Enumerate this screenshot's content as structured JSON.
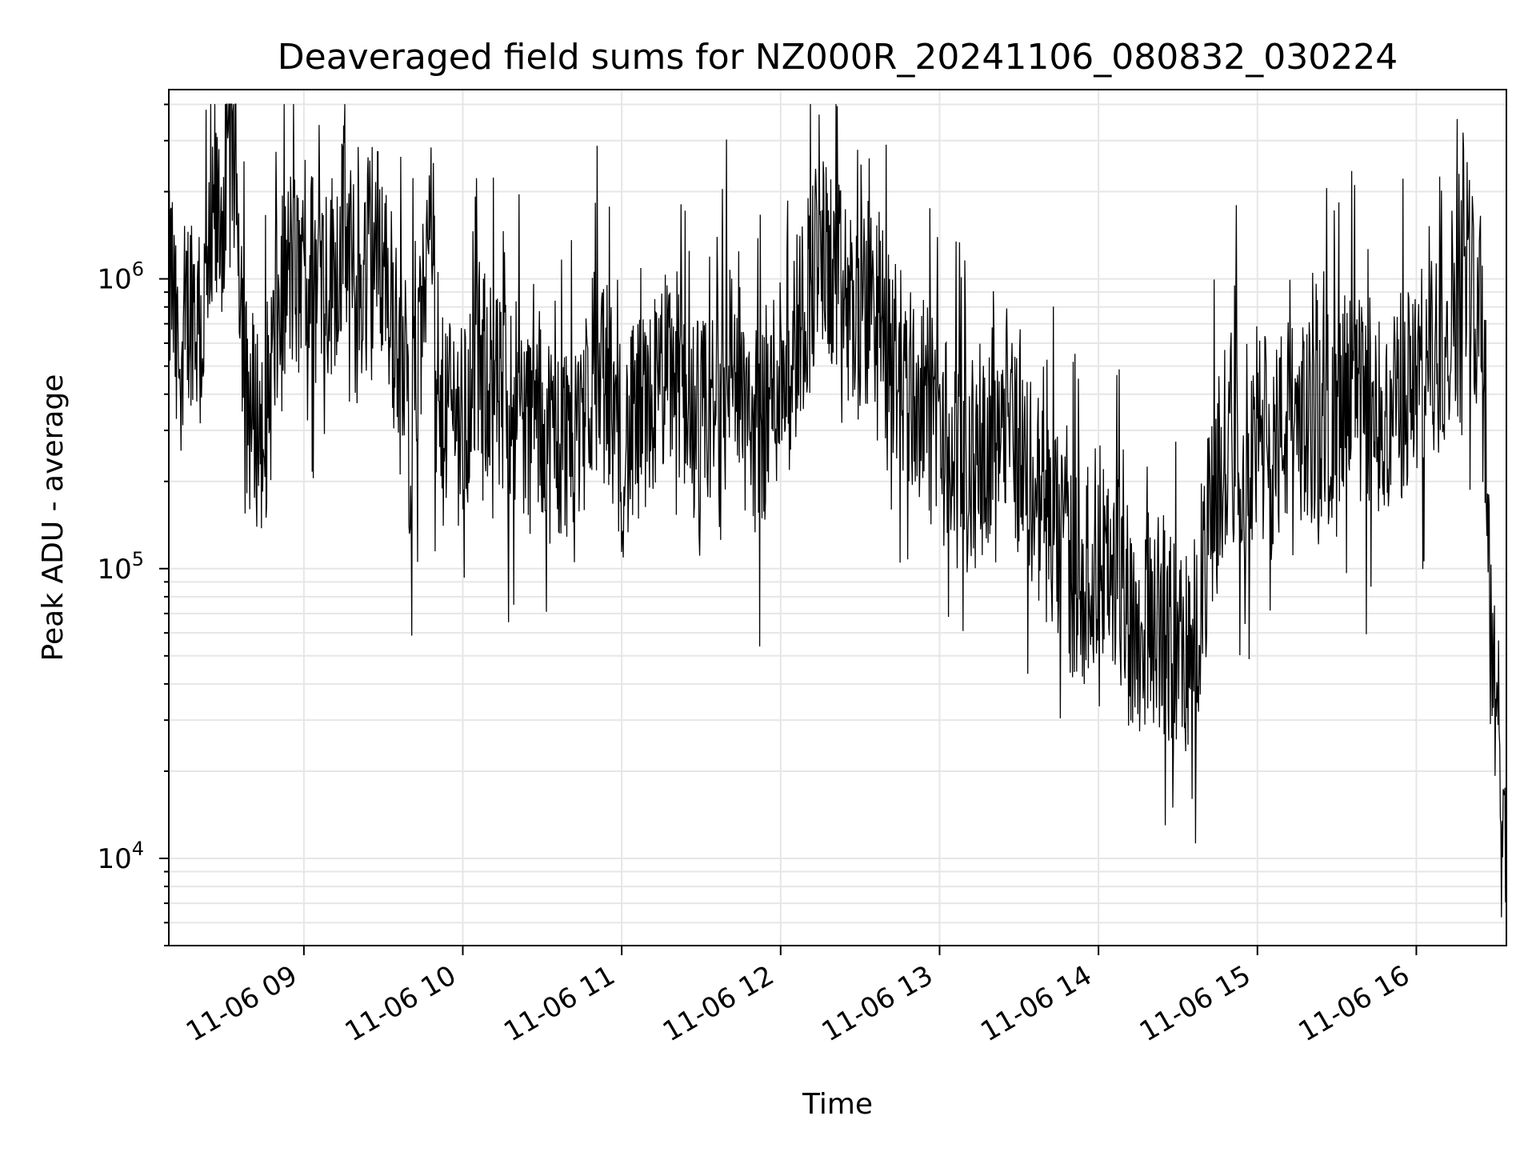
{
  "chart_data": {
    "type": "line",
    "title": "Deaveraged field sums for NZ000R_20241106_080832_030224",
    "xlabel": "Time",
    "ylabel": "Peak ADU - average",
    "y_scale": "log",
    "ylim": [
      5000,
      4500000
    ],
    "xlim": [
      "2024-11-06 08:09:00",
      "2024-11-06 16:34:00"
    ],
    "x_ticks": [
      {
        "value": "2024-11-06 09:00",
        "label": "11-06 09"
      },
      {
        "value": "2024-11-06 10:00",
        "label": "11-06 10"
      },
      {
        "value": "2024-11-06 11:00",
        "label": "11-06 11"
      },
      {
        "value": "2024-11-06 12:00",
        "label": "11-06 12"
      },
      {
        "value": "2024-11-06 13:00",
        "label": "11-06 13"
      },
      {
        "value": "2024-11-06 14:00",
        "label": "11-06 14"
      },
      {
        "value": "2024-11-06 15:00",
        "label": "11-06 15"
      },
      {
        "value": "2024-11-06 16:00",
        "label": "11-06 16"
      }
    ],
    "y_ticks": [
      {
        "value": 10000,
        "base": "10",
        "exp": "4"
      },
      {
        "value": 100000,
        "base": "10",
        "exp": "5"
      },
      {
        "value": 1000000,
        "base": "10",
        "exp": "6"
      }
    ],
    "grid": true,
    "line_color": "#000000",
    "grid_color": "#e6e6e6",
    "series": [
      {
        "x": [
          "08:09",
          "08:10",
          "08:12",
          "08:15",
          "08:18",
          "08:21",
          "08:24",
          "08:27",
          "08:30",
          "08:33",
          "08:36",
          "08:38",
          "08:40",
          "08:45",
          "08:50",
          "08:55",
          "09:00",
          "09:05",
          "09:10",
          "09:15",
          "09:20",
          "09:25",
          "09:30",
          "09:35",
          "09:40",
          "09:45",
          "09:48",
          "09:50",
          "09:55",
          "10:00",
          "10:05",
          "10:10",
          "10:15",
          "10:20",
          "10:25",
          "10:30",
          "10:35",
          "10:40",
          "10:45",
          "10:50",
          "10:55",
          "11:00",
          "11:05",
          "11:10",
          "11:15",
          "11:20",
          "11:25",
          "11:30",
          "11:35",
          "11:40",
          "11:45",
          "11:50",
          "11:55",
          "12:00",
          "12:05",
          "12:10",
          "12:15",
          "12:20",
          "12:25",
          "12:30",
          "12:35",
          "12:40",
          "12:45",
          "12:50",
          "12:55",
          "13:00",
          "13:05",
          "13:10",
          "13:15",
          "13:20",
          "13:25",
          "13:30",
          "13:35",
          "13:40",
          "13:45",
          "13:50",
          "13:55",
          "14:00",
          "14:05",
          "14:10",
          "14:15",
          "14:20",
          "14:25",
          "14:30",
          "14:35",
          "14:40",
          "14:45",
          "14:50",
          "14:55",
          "15:00",
          "15:05",
          "15:10",
          "15:15",
          "15:20",
          "15:25",
          "15:30",
          "15:35",
          "15:40",
          "15:45",
          "15:50",
          "15:55",
          "16:00",
          "16:05",
          "16:10",
          "16:15",
          "16:18",
          "16:20",
          "16:22",
          "16:25",
          "16:28",
          "16:30",
          "16:32",
          "16:34"
        ],
        "y": [
          800000,
          1100000,
          500000,
          700000,
          900000,
          600000,
          1000000,
          1500000,
          1800000,
          3000000,
          1200000,
          400000,
          350000,
          300000,
          700000,
          1100000,
          900000,
          1200000,
          1000000,
          1500000,
          800000,
          1400000,
          1200000,
          600000,
          300000,
          700000,
          3300000,
          250000,
          400000,
          300000,
          500000,
          450000,
          350000,
          400000,
          300000,
          350000,
          250000,
          300000,
          350000,
          500000,
          400000,
          250000,
          300000,
          350000,
          450000,
          500000,
          400000,
          300000,
          350000,
          600000,
          400000,
          300000,
          350000,
          500000,
          600000,
          900000,
          1200000,
          1000000,
          800000,
          700000,
          900000,
          600000,
          500000,
          400000,
          350000,
          300000,
          250000,
          200000,
          250000,
          300000,
          400000,
          250000,
          200000,
          150000,
          120000,
          100000,
          90000,
          120000,
          100000,
          80000,
          60000,
          70000,
          60000,
          55000,
          50000,
          100000,
          200000,
          300000,
          250000,
          300000,
          250000,
          300000,
          350000,
          300000,
          350000,
          300000,
          400000,
          350000,
          300000,
          350000,
          400000,
          450000,
          500000,
          600000,
          900000,
          1500000,
          1000000,
          900000,
          800000,
          80000,
          40000,
          15000,
          10000
        ]
      }
    ]
  }
}
